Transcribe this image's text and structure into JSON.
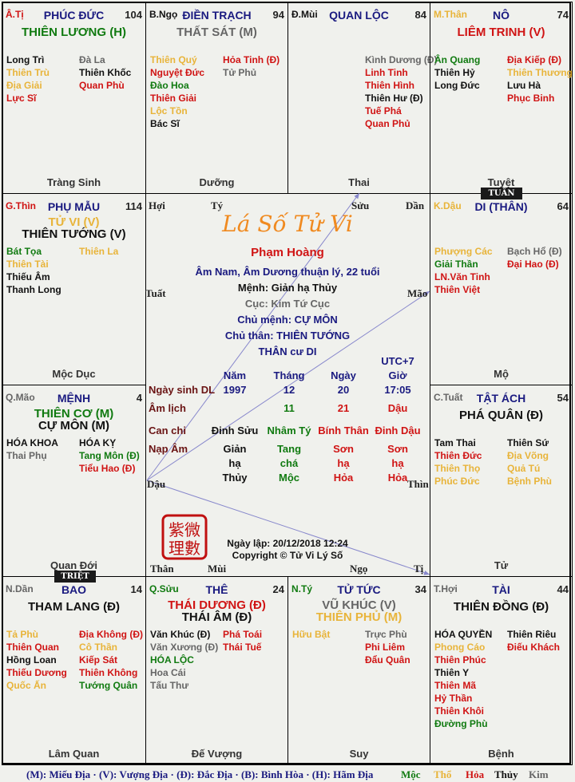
{
  "colors": {
    "r": "#d01414",
    "g": "#107a10",
    "y": "#e8b43a",
    "k": "#111111",
    "s": "#666666",
    "n": "#1a1a80",
    "orange": "#f08a20"
  },
  "palaces": [
    {
      "branch": "Â.Tị",
      "bc": "r",
      "name": "PHÚC ĐỨC",
      "num": "104",
      "mains": [
        {
          "t": "THIÊN LƯƠNG (H)",
          "c": "g"
        }
      ],
      "left": [
        {
          "t": "Long Trì",
          "c": "k"
        },
        {
          "t": "Thiên Trù",
          "c": "y"
        },
        {
          "t": "Địa Giải",
          "c": "y"
        },
        {
          "t": "Lực Sĩ",
          "c": "r"
        }
      ],
      "right": [
        {
          "t": "Đà La",
          "c": "s"
        },
        {
          "t": "Thiên Khốc",
          "c": "k"
        },
        {
          "t": "Quan Phù",
          "c": "r"
        }
      ],
      "stage": "Tràng Sinh"
    },
    {
      "branch": "B.Ngọ",
      "bc": "k",
      "name": "ĐIỀN TRẠCH",
      "num": "94",
      "mains": [
        {
          "t": "THẤT SÁT (M)",
          "c": "s"
        }
      ],
      "left": [
        {
          "t": "Thiên Quý",
          "c": "y"
        },
        {
          "t": "Nguyệt Đức",
          "c": "r"
        },
        {
          "t": "Đào Hoa",
          "c": "g"
        },
        {
          "t": "Thiên Giải",
          "c": "r"
        },
        {
          "t": "Lộc Tồn",
          "c": "y"
        },
        {
          "t": "Bác Sĩ",
          "c": "k"
        }
      ],
      "right": [
        {
          "t": "Hỏa Tinh (Đ)",
          "c": "r"
        },
        {
          "t": "Tử Phủ",
          "c": "s"
        }
      ],
      "stage": "Dưỡng"
    },
    {
      "branch": "Đ.Mùi",
      "bc": "k",
      "name": "QUAN LỘC",
      "num": "84",
      "mains": [],
      "left": [],
      "right": [
        {
          "t": "Kình Dương (Đ)",
          "c": "s"
        },
        {
          "t": "Linh Tinh",
          "c": "r"
        },
        {
          "t": "Thiên Hình",
          "c": "r"
        },
        {
          "t": "Thiên Hư (Đ)",
          "c": "k"
        },
        {
          "t": "Tuế Phá",
          "c": "r"
        },
        {
          "t": "Quan Phủ",
          "c": "r"
        }
      ],
      "stage": "Thai"
    },
    {
      "branch": "M.Thân",
      "bc": "y",
      "name": "NÔ",
      "num": "74",
      "mains": [
        {
          "t": "LIÊM TRINH (V)",
          "c": "r"
        }
      ],
      "left": [
        {
          "t": "Ân Quang",
          "c": "g"
        },
        {
          "t": "Thiên Hỷ",
          "c": "k"
        },
        {
          "t": "Long Đức",
          "c": "k"
        }
      ],
      "right": [
        {
          "t": "Địa Kiếp (Đ)",
          "c": "r"
        },
        {
          "t": "Thiên Thương",
          "c": "y"
        },
        {
          "t": "Lưu Hà",
          "c": "k"
        },
        {
          "t": "Phục Binh",
          "c": "r"
        }
      ],
      "stage": "Tuyệt"
    },
    {
      "branch": "G.Thìn",
      "bc": "r",
      "name": "PHỤ MẪU",
      "num": "114",
      "mains": [
        {
          "t": "TỬ VI (V)",
          "c": "y"
        },
        {
          "t": "THIÊN TƯỚNG (V)",
          "c": "k"
        }
      ],
      "left": [
        {
          "t": "Bát Tọa",
          "c": "g"
        },
        {
          "t": "Thiên Tài",
          "c": "y"
        },
        {
          "t": "Thiếu Âm",
          "c": "k"
        },
        {
          "t": "Thanh Long",
          "c": "k"
        }
      ],
      "right": [
        {
          "t": "Thiên La",
          "c": "y"
        }
      ],
      "stage": "Mộc Dục"
    },
    {
      "branch": "K.Dậu",
      "bc": "y",
      "name": "DI (THÂN)",
      "num": "64",
      "mains": [],
      "left": [
        {
          "t": "Phượng Các",
          "c": "y"
        },
        {
          "t": "Giải Thần",
          "c": "g"
        },
        {
          "t": "LN.Văn Tinh",
          "c": "r"
        },
        {
          "t": "Thiên Việt",
          "c": "r"
        }
      ],
      "right": [
        {
          "t": "Bạch Hổ (Đ)",
          "c": "s"
        },
        {
          "t": "Đại Hao (Đ)",
          "c": "r"
        }
      ],
      "stage": "Mộ"
    },
    {
      "branch": "Q.Mão",
      "bc": "s",
      "name": "MỆNH",
      "num": "4",
      "mains": [
        {
          "t": "THIÊN CƠ (M)",
          "c": "g"
        },
        {
          "t": "CỰ MÔN (M)",
          "c": "k"
        }
      ],
      "left": [
        {
          "t": "HÓA KHOA",
          "c": "k"
        },
        {
          "t": "Thai Phụ",
          "c": "s"
        }
      ],
      "right": [
        {
          "t": "HÓA KỴ",
          "c": "k"
        },
        {
          "t": "Tang Môn (Đ)",
          "c": "g"
        },
        {
          "t": "Tiểu Hao (Đ)",
          "c": "r"
        }
      ],
      "stage": "Quan Đới"
    },
    {
      "branch": "C.Tuất",
      "bc": "s",
      "name": "TẬT ÁCH",
      "num": "54",
      "mains": [
        {
          "t": "PHÁ QUÂN (Đ)",
          "c": "k"
        }
      ],
      "left": [
        {
          "t": "Tam Thai",
          "c": "k"
        },
        {
          "t": "Thiên Đức",
          "c": "r"
        },
        {
          "t": "Thiên Thọ",
          "c": "y"
        },
        {
          "t": "Phúc Đức",
          "c": "y"
        }
      ],
      "right": [
        {
          "t": "Thiên Sứ",
          "c": "k"
        },
        {
          "t": "Địa Võng",
          "c": "y"
        },
        {
          "t": "Quả Tú",
          "c": "y"
        },
        {
          "t": "Bệnh Phù",
          "c": "y"
        }
      ],
      "stage": "Tử"
    },
    {
      "branch": "N.Dần",
      "bc": "s",
      "name": "BAO",
      "num": "14",
      "mains": [
        {
          "t": "THAM LANG (Đ)",
          "c": "k"
        }
      ],
      "left": [
        {
          "t": "Tả Phù",
          "c": "y"
        },
        {
          "t": "Thiên Quan",
          "c": "r"
        },
        {
          "t": "Hồng Loan",
          "c": "k"
        },
        {
          "t": "Thiếu Dương",
          "c": "r"
        },
        {
          "t": "Quốc Ấn",
          "c": "y"
        }
      ],
      "right": [
        {
          "t": "Địa Không (Đ)",
          "c": "r"
        },
        {
          "t": "Cô Thần",
          "c": "y"
        },
        {
          "t": "Kiếp Sát",
          "c": "r"
        },
        {
          "t": "Thiên Không",
          "c": "r"
        },
        {
          "t": "Tướng Quân",
          "c": "g"
        }
      ],
      "stage": "Lâm Quan"
    },
    {
      "branch": "Q.Sửu",
      "bc": "g",
      "name": "THÊ",
      "num": "24",
      "mains": [
        {
          "t": "THÁI DƯƠNG (Đ)",
          "c": "r"
        },
        {
          "t": "THÁI ÂM (Đ)",
          "c": "k"
        }
      ],
      "left": [
        {
          "t": "Văn Khúc (Đ)",
          "c": "k"
        },
        {
          "t": "Văn Xương (Đ)",
          "c": "s"
        },
        {
          "t": "HÓA LỘC",
          "c": "g"
        },
        {
          "t": "Hoa Cái",
          "c": "s"
        },
        {
          "t": "Tấu Thư",
          "c": "s"
        }
      ],
      "right": [
        {
          "t": "Phá Toái",
          "c": "r"
        },
        {
          "t": "Thái Tuế",
          "c": "r"
        }
      ],
      "stage": "Đế Vượng"
    },
    {
      "branch": "N.Tý",
      "bc": "g",
      "name": "TỬ TỨC",
      "num": "34",
      "mains": [
        {
          "t": "VŨ KHÚC (V)",
          "c": "s"
        },
        {
          "t": "THIÊN PHỦ (M)",
          "c": "y"
        }
      ],
      "left": [
        {
          "t": "Hữu Bật",
          "c": "y"
        }
      ],
      "right": [
        {
          "t": "Trực Phù",
          "c": "s"
        },
        {
          "t": "Phi Liêm",
          "c": "r"
        },
        {
          "t": "Đẩu Quân",
          "c": "r"
        }
      ],
      "stage": "Suy"
    },
    {
      "branch": "T.Hợi",
      "bc": "s",
      "name": "TÀI",
      "num": "44",
      "mains": [
        {
          "t": "THIÊN ĐỒNG (Đ)",
          "c": "k"
        }
      ],
      "left": [
        {
          "t": "HÓA QUYỀN",
          "c": "k"
        },
        {
          "t": "Phong Cáo",
          "c": "y"
        },
        {
          "t": "Thiên Phúc",
          "c": "r"
        },
        {
          "t": "Thiên Y",
          "c": "k"
        },
        {
          "t": "Thiên Mã",
          "c": "r"
        },
        {
          "t": "Hỷ Thần",
          "c": "r"
        },
        {
          "t": "Thiên Khôi",
          "c": "r"
        },
        {
          "t": "Đường Phù",
          "c": "g"
        }
      ],
      "right": [
        {
          "t": "Thiên Riêu",
          "c": "k"
        },
        {
          "t": "Điếu Khách",
          "c": "r"
        }
      ],
      "stage": "Bệnh"
    }
  ],
  "badges": {
    "tuan": "TUẦN",
    "triet": "TRIỆT"
  },
  "center": {
    "branches": {
      "hoi": "Hợi",
      "ty": "Tý",
      "suu": "Sửu",
      "dan": "Dần",
      "tuat": "Tuất",
      "mao": "Mão",
      "dau": "Dậu",
      "thin": "Thìn",
      "than": "Thân",
      "mui": "Mùi",
      "ngo": "Ngọ",
      "ti": "Tị"
    },
    "title": "Lá Số Tử Vi",
    "name": "Phạm Hoàng",
    "info": "Âm Nam, Âm Dương thuận lý, 22 tuổi",
    "menh": "Mệnh: Giản hạ Thủy",
    "cuc": "Cục: Kim Tứ Cục",
    "chu_menh": "Chủ mệnh:  CỰ MÔN",
    "chu_than": "Chủ thân:  THIÊN TƯỚNG",
    "than_cu": "THÂN cư DI",
    "utc": "UTC+7",
    "cols": [
      "Năm",
      "Tháng",
      "Ngày",
      "Giờ"
    ],
    "solar_label": "Ngày sinh DL",
    "solar": [
      "1997",
      "12",
      "20",
      "17:05"
    ],
    "lunar_label": "Âm lịch",
    "lunar": [
      "",
      "11",
      "21",
      "Dậu"
    ],
    "canchi_label": "Can chi",
    "canchi": [
      "Đinh Sửu",
      "Nhâm Tý",
      "Bính Thân",
      "Đinh Dậu"
    ],
    "napam_label": "Nạp Âm",
    "napam": [
      [
        "Giản",
        "hạ",
        "Thủy"
      ],
      [
        "Tang",
        "chá",
        "Mộc"
      ],
      [
        "Sơn",
        "hạ",
        "Hỏa"
      ],
      [
        "Sơn",
        "hạ",
        "Hỏa"
      ]
    ],
    "created": "Ngày lập: 20/12/2018 12:24",
    "copyright": "Copyright © Tử Vi Lý Số",
    "seal_text": "紫微理數"
  },
  "legend": {
    "text": "(M): Miếu Địa · (V): Vượng Địa · (Đ): Đắc Địa · (B): Bình Hòa · (H): Hãm Địa",
    "elements": [
      {
        "t": "Mộc",
        "c": "g"
      },
      {
        "t": "Thổ",
        "c": "y"
      },
      {
        "t": "Hỏa",
        "c": "r"
      },
      {
        "t": "Thủy",
        "c": "k"
      },
      {
        "t": "Kim",
        "c": "s"
      }
    ]
  }
}
